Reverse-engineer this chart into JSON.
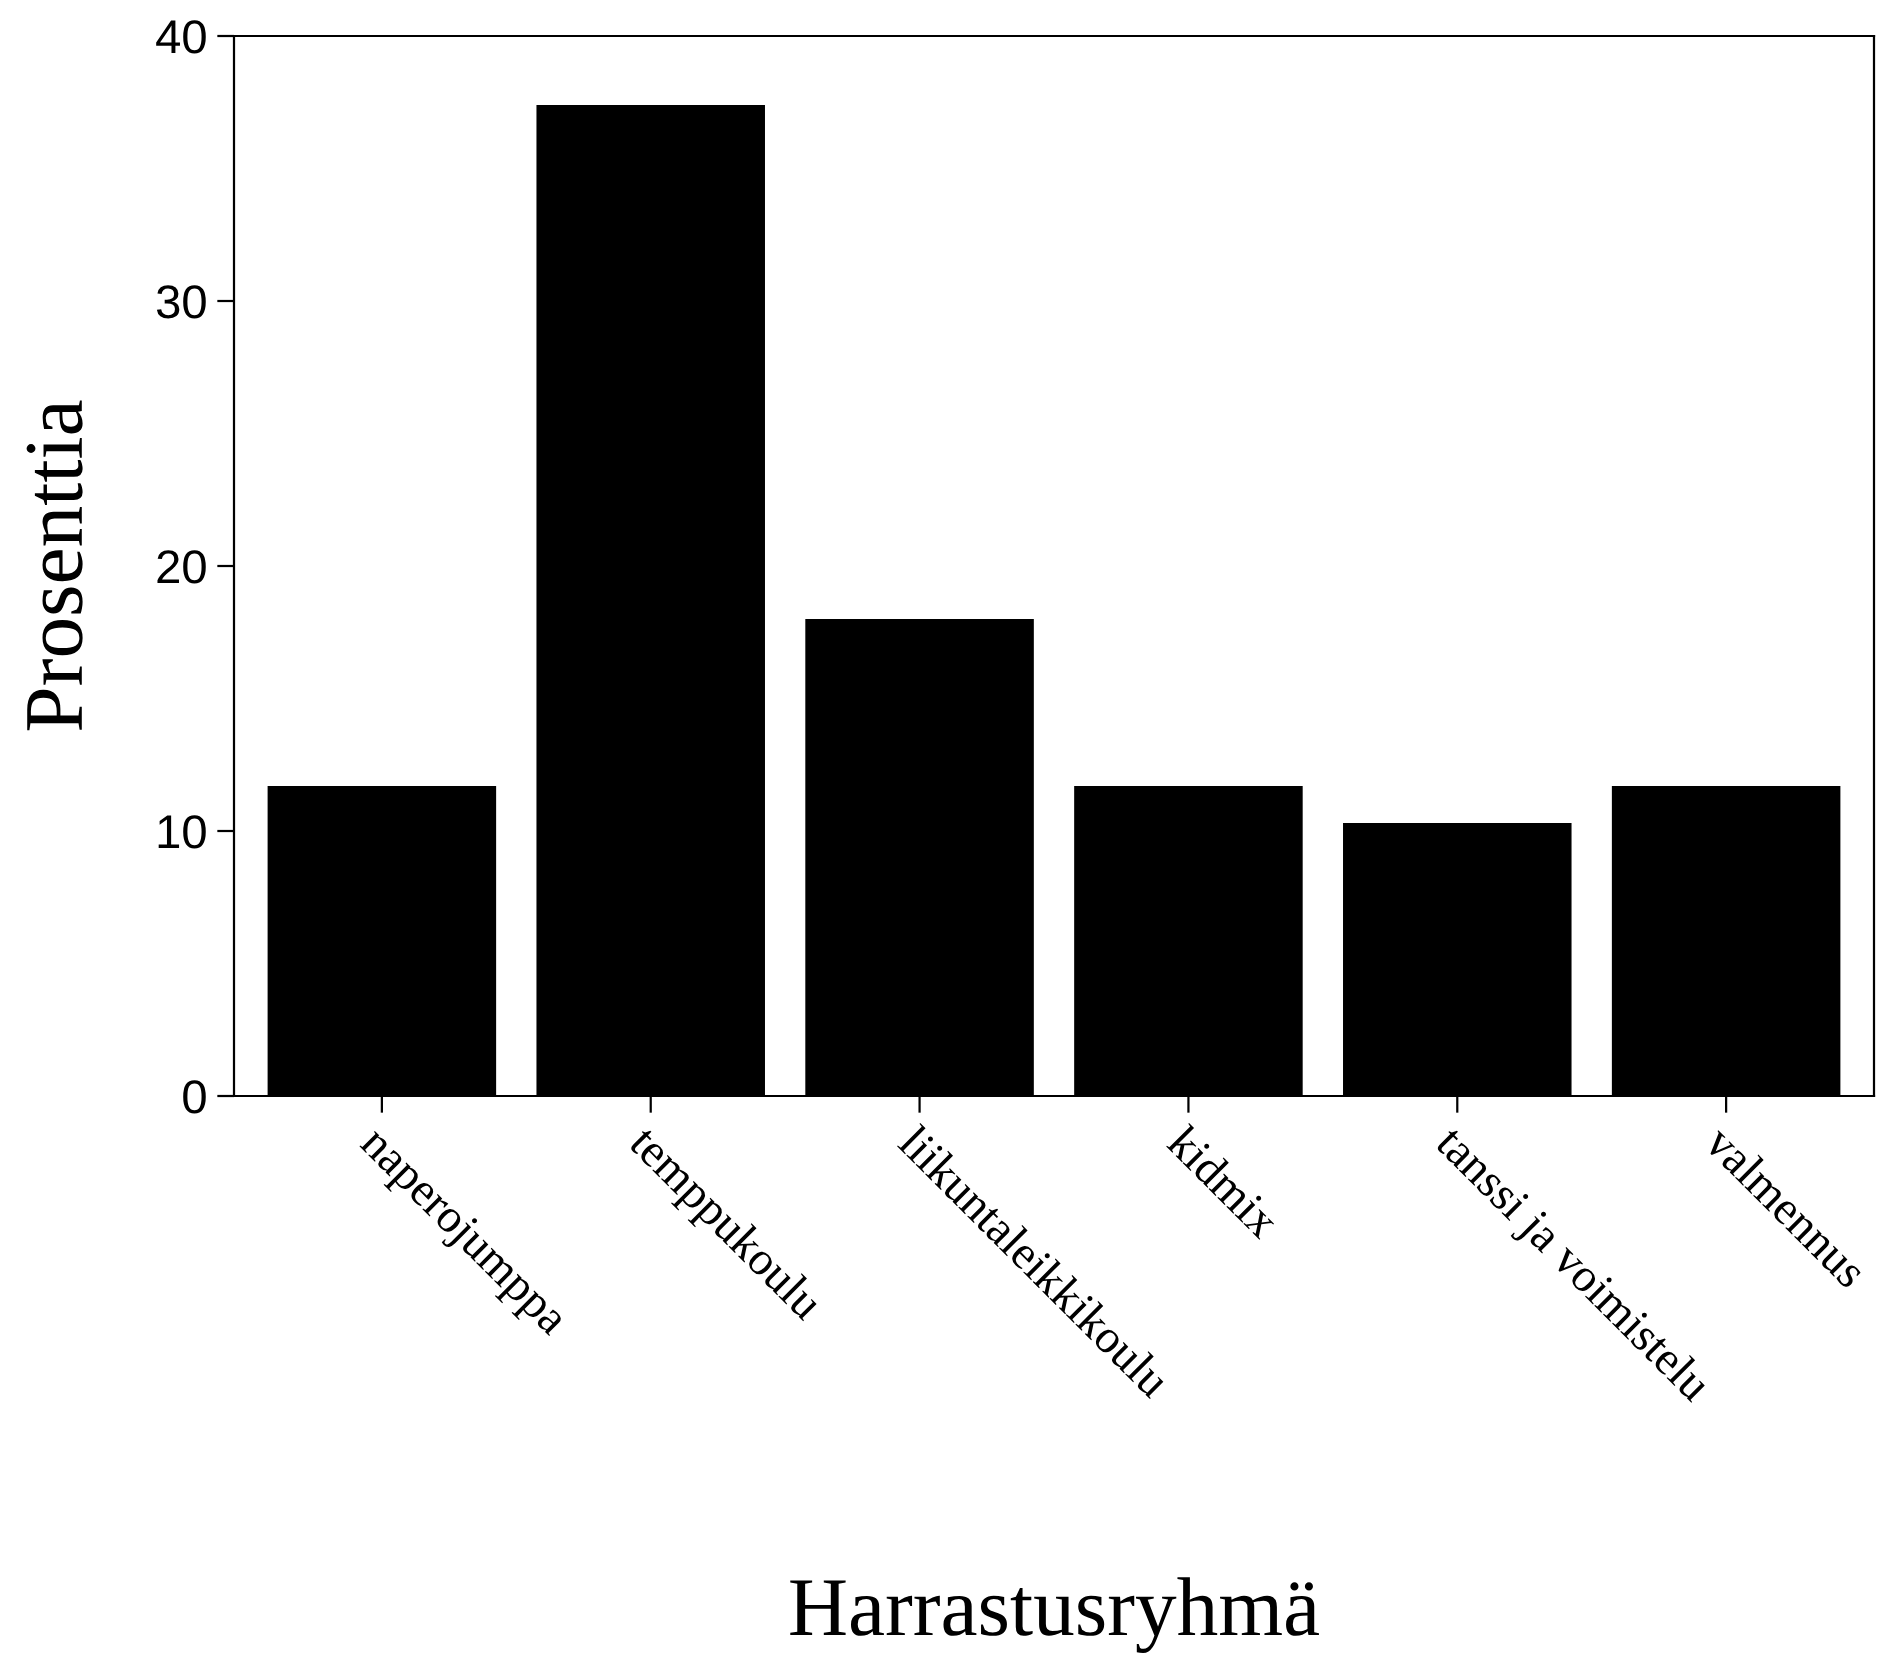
{
  "chart_data": {
    "type": "bar",
    "categories": [
      "naperojumppa",
      "temppukoulu",
      "liikuntaleikkikoulu",
      "kidmix",
      "tanssi ja voimistelu",
      "valmennus"
    ],
    "values": [
      11.7,
      37.4,
      18.0,
      11.7,
      10.3,
      11.7
    ],
    "color": "#000000",
    "xlabel": "Harrastusryhmä",
    "ylabel": "Prosenttia",
    "ylim": [
      0,
      40
    ],
    "yticks": [
      0,
      10,
      20,
      30,
      40
    ],
    "grid": false,
    "legend": false
  }
}
